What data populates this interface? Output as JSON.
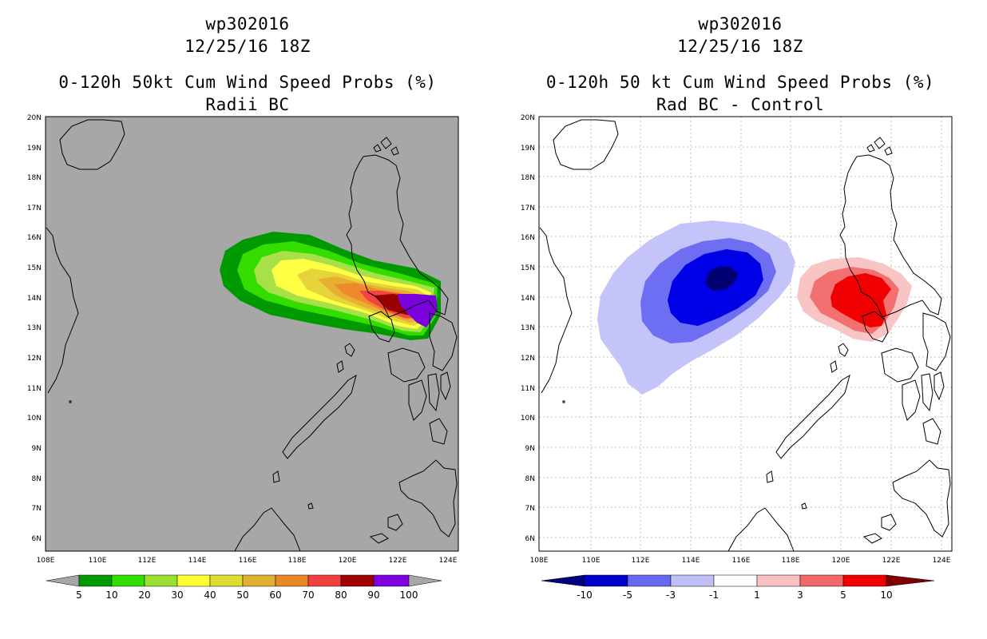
{
  "left": {
    "title1": "wp302016",
    "title2": "12/25/16 18Z",
    "title3": "0-120h 50kt Cum Wind Speed Probs (%)",
    "title4": "Radii BC",
    "legend_labels": [
      "5",
      "10",
      "20",
      "30",
      "40",
      "50",
      "60",
      "70",
      "80",
      "90",
      "100"
    ],
    "legend_colors": [
      "#009900",
      "#33dd00",
      "#99e030",
      "#ffff33",
      "#dddd33",
      "#e0b030",
      "#e88828",
      "#f04040",
      "#a00000",
      "#8000e0"
    ],
    "field_colors": {
      "background": "#a7a7a7",
      "c5": "#009900",
      "c10": "#33dd00",
      "c20": "#a8e048",
      "c30": "#ffff44",
      "c40": "#e6d43a",
      "c50": "#e8b030",
      "c60": "#ee8a2c",
      "c70": "#f24444",
      "c80": "#9a0000",
      "c90": "#7a00dc"
    }
  },
  "right": {
    "title1": "wp302016",
    "title2": "12/25/16 18Z",
    "title3": "0-120h 50 kt Cum Wind Speed Probs (%)",
    "title4": "Rad BC - Control",
    "legend_labels": [
      "-10",
      "-5",
      "-3",
      "-1",
      "1",
      "3",
      "5",
      "10"
    ],
    "legend_colors": [
      "#0000c8",
      "#6868f0",
      "#c0c0f8",
      "#ffffff",
      "#f8c0c0",
      "#f06868",
      "#f00000"
    ],
    "end_colors": {
      "low": "#000080",
      "high": "#800000"
    },
    "field_colors": {
      "n1": "#c4c4fa",
      "n3": "#6e6ef2",
      "n5": "#0000e6",
      "n10": "#000070",
      "p1": "#f8c4c4",
      "p3": "#f27070",
      "p5": "#f00000"
    }
  },
  "axes": {
    "lat_labels": [
      "20N",
      "19N",
      "18N",
      "17N",
      "16N",
      "15N",
      "14N",
      "13N",
      "12N",
      "11N",
      "10N",
      "9N",
      "8N",
      "7N",
      "6N"
    ],
    "lon_labels": [
      "108E",
      "110E",
      "112E",
      "114E",
      "116E",
      "118E",
      "120E",
      "122E",
      "124E"
    ]
  }
}
